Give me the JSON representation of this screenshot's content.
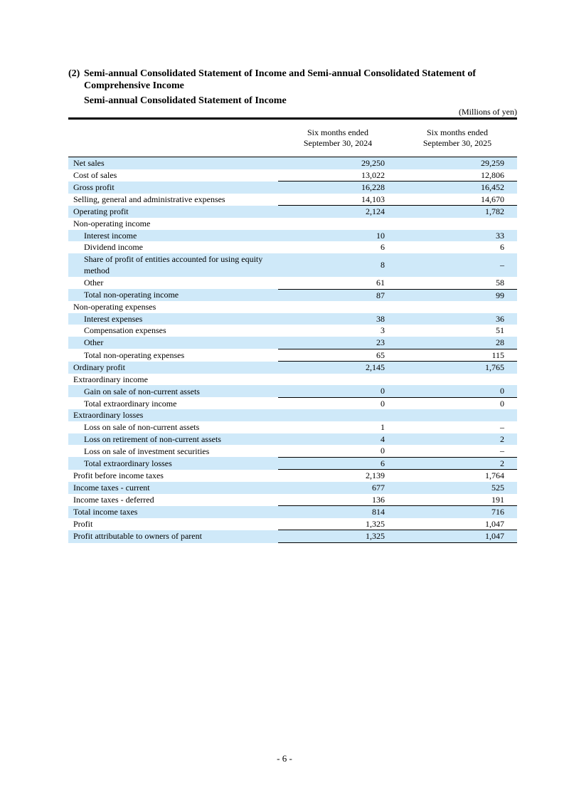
{
  "header": {
    "number": "(2)",
    "title": [
      "Semi-annual Consolidated Statement of Income and Semi-annual Consolidated Statement of",
      "Comprehensive Income"
    ],
    "subtitle": "Semi-annual Consolidated Statement of Income",
    "unit": "(Millions of yen)"
  },
  "table": {
    "columns": [
      [
        "Six months ended",
        "September 30, 2024"
      ],
      [
        "Six months ended",
        "September 30, 2025"
      ]
    ],
    "rows": [
      [
        "Net sales",
        "29,250",
        "29,259"
      ],
      [
        "Cost of sales",
        "13,022",
        "12,806"
      ],
      [
        "Gross profit",
        "16,228",
        "16,452"
      ],
      [
        "Selling, general and administrative expenses",
        "14,103",
        "14,670"
      ],
      [
        "Operating profit",
        "2,124",
        "1,782"
      ],
      [
        "Non-operating income"
      ],
      [
        "Interest income",
        "10",
        "33"
      ],
      [
        "Dividend income",
        "6",
        "6"
      ],
      [
        "Share of profit of entities accounted for using equity method",
        "8",
        "–"
      ],
      [
        "Other",
        "61",
        "58"
      ],
      [
        "Total non-operating income",
        "87",
        "99"
      ],
      [
        "Non-operating expenses"
      ],
      [
        "Interest expenses",
        "38",
        "36"
      ],
      [
        "Compensation expenses",
        "3",
        "51"
      ],
      [
        "Other",
        "23",
        "28"
      ],
      [
        "Total non-operating expenses",
        "65",
        "115"
      ],
      [
        "Ordinary profit",
        "2,145",
        "1,765"
      ],
      [
        "Extraordinary income"
      ],
      [
        "Gain on sale of non-current assets",
        "0",
        "0"
      ],
      [
        "Total extraordinary income",
        "0",
        "0"
      ],
      [
        "Extraordinary losses"
      ],
      [
        "Loss on sale of non-current assets",
        "1",
        "–"
      ],
      [
        "Loss on retirement of non-current assets",
        "4",
        "2"
      ],
      [
        "Loss on sale of investment securities",
        "0",
        "–"
      ],
      [
        "Total extraordinary losses",
        "6",
        "2"
      ],
      [
        "Profit before income taxes",
        "2,139",
        "1,764"
      ],
      [
        "Income taxes - current",
        "677",
        "525"
      ],
      [
        "Income taxes - deferred",
        "136",
        "191"
      ],
      [
        "Total income taxes",
        "814",
        "716"
      ],
      [
        "Profit",
        "1,325",
        "1,047"
      ],
      [
        "Profit attributable to owners of parent",
        "1,325",
        "1,047"
      ]
    ]
  },
  "footer": {
    "page": "- 6 -"
  }
}
